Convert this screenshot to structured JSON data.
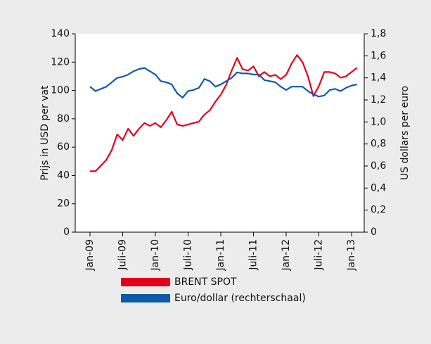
{
  "chart_data": {
    "type": "line",
    "categories": [
      "Jan-09",
      null,
      null,
      null,
      null,
      null,
      "Juli-09",
      null,
      null,
      null,
      null,
      null,
      "Jan-10",
      null,
      null,
      null,
      null,
      null,
      "Juli-10",
      null,
      null,
      null,
      null,
      null,
      "Jan-11",
      null,
      null,
      null,
      null,
      null,
      "Juli-11",
      null,
      null,
      null,
      null,
      null,
      "Jan-12",
      null,
      null,
      null,
      null,
      null,
      "Juli-12",
      null,
      null,
      null,
      null,
      null,
      "Jan-13",
      null
    ],
    "series": [
      {
        "name": "BRENT SPOT",
        "color": "#e3001b",
        "values": [
          43,
          43,
          47,
          51,
          58,
          69,
          65,
          73,
          68,
          73,
          77,
          75,
          77,
          74,
          79,
          85,
          76,
          75,
          76,
          77,
          78,
          83,
          86,
          92,
          97,
          104,
          114,
          123,
          115,
          114,
          117,
          110,
          113,
          110,
          111,
          108,
          111,
          119,
          125,
          120,
          110,
          96,
          103,
          113,
          113,
          112,
          109,
          110,
          113,
          116
        ]
      },
      {
        "name": "Euro/dollar (rechterschaal)",
        "color": "#0d5aa7",
        "axis": "y2",
        "values": [
          1.32,
          1.28,
          1.3,
          1.32,
          1.36,
          1.4,
          1.41,
          1.43,
          1.46,
          1.48,
          1.49,
          1.46,
          1.43,
          1.37,
          1.36,
          1.34,
          1.26,
          1.22,
          1.28,
          1.29,
          1.31,
          1.39,
          1.37,
          1.32,
          1.34,
          1.37,
          1.4,
          1.45,
          1.44,
          1.44,
          1.43,
          1.43,
          1.38,
          1.37,
          1.36,
          1.32,
          1.29,
          1.32,
          1.32,
          1.32,
          1.28,
          1.25,
          1.23,
          1.24,
          1.29,
          1.3,
          1.28,
          1.31,
          1.33,
          1.34
        ]
      }
    ],
    "ylabel": "Prijs in USD per vat",
    "y2label": "US dollars per euro",
    "ylim": [
      0,
      140
    ],
    "yticks": [
      0,
      20,
      40,
      60,
      80,
      100,
      120,
      140
    ],
    "y2lim": [
      0,
      1.8
    ],
    "y2ticks": [
      0,
      {
        "value": 0.2,
        "label": "0,2"
      },
      {
        "value": 0.4,
        "label": "0,4"
      },
      {
        "value": 0.6,
        "label": "0,6"
      },
      {
        "value": 0.8,
        "label": "0,8"
      },
      {
        "value": 1.0,
        "label": "1,0"
      },
      {
        "value": 1.2,
        "label": "1,2"
      },
      {
        "value": 1.4,
        "label": "1,4"
      },
      {
        "value": 1.6,
        "label": "1,6"
      },
      {
        "value": 1.8,
        "label": "1,8"
      }
    ]
  }
}
